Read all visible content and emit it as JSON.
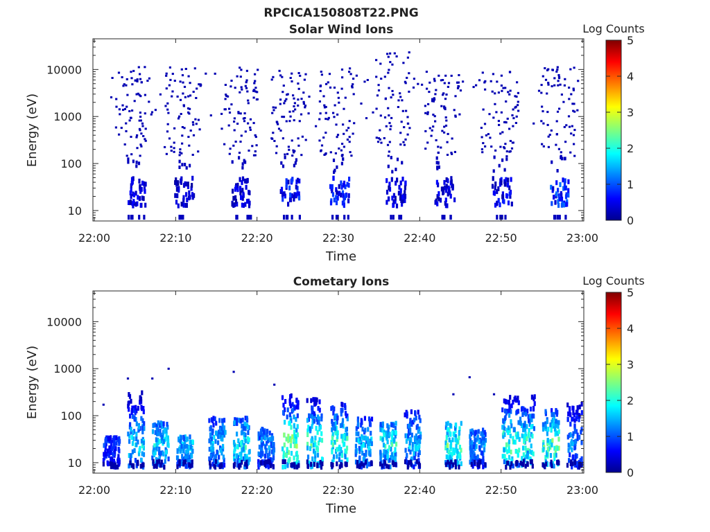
{
  "figure": {
    "title": "RPCICA150808T22.PNG"
  },
  "colorbar": {
    "label": "Log Counts",
    "ticks": [
      "5",
      "4",
      "3",
      "2",
      "1",
      "0"
    ],
    "range": [
      0,
      5
    ],
    "colormap": "jet"
  },
  "chart_data": [
    {
      "type": "heatmap",
      "title": "Solar Wind Ions",
      "xlabel": "Time",
      "ylabel": "Energy (eV)",
      "xticks": [
        "22:00",
        "22:10",
        "22:20",
        "22:30",
        "22:40",
        "22:50",
        "23:00"
      ],
      "yticks": [
        "10",
        "100",
        "1000",
        "10000"
      ],
      "xlim": [
        "22:00",
        "23:00"
      ],
      "ylim": [
        6,
        45000
      ],
      "yscale": "log",
      "bursts": [
        {
          "t": "22:05",
          "low_log_counts": 0.6,
          "high_energy_max": 12000
        },
        {
          "t": "22:11",
          "low_log_counts": 0.5,
          "high_energy_max": 12000
        },
        {
          "t": "22:18",
          "low_log_counts": 0.6,
          "high_energy_max": 12000
        },
        {
          "t": "22:24",
          "low_log_counts": 0.9,
          "high_energy_max": 10000
        },
        {
          "t": "22:30",
          "low_log_counts": 0.9,
          "high_energy_max": 12000
        },
        {
          "t": "22:37",
          "low_log_counts": 0.6,
          "high_energy_max": 25000
        },
        {
          "t": "22:43",
          "low_log_counts": 0.6,
          "high_energy_max": 10000
        },
        {
          "t": "22:50",
          "low_log_counts": 0.7,
          "high_energy_max": 10000
        },
        {
          "t": "22:57",
          "low_log_counts": 1.1,
          "high_energy_max": 12000
        }
      ]
    },
    {
      "type": "heatmap",
      "title": "Cometary Ions",
      "xlabel": "Time",
      "ylabel": "Energy (eV)",
      "xticks": [
        "22:00",
        "22:10",
        "22:20",
        "22:30",
        "22:40",
        "22:50",
        "23:00"
      ],
      "yticks": [
        "10",
        "100",
        "1000",
        "10000"
      ],
      "xlim": [
        "22:00",
        "23:00"
      ],
      "ylim": [
        6,
        45000
      ],
      "yscale": "log",
      "bursts": [
        {
          "t": "22:02",
          "peak_log_counts": 1.0,
          "top_energy": 40
        },
        {
          "t": "22:05",
          "peak_log_counts": 2.0,
          "top_energy": 350
        },
        {
          "t": "22:08",
          "peak_log_counts": 2.0,
          "top_energy": 80
        },
        {
          "t": "22:11",
          "peak_log_counts": 1.8,
          "top_energy": 40
        },
        {
          "t": "22:15",
          "peak_log_counts": 1.8,
          "top_energy": 100
        },
        {
          "t": "22:18",
          "peak_log_counts": 2.2,
          "top_energy": 100
        },
        {
          "t": "22:21",
          "peak_log_counts": 1.5,
          "top_energy": 60
        },
        {
          "t": "22:24",
          "peak_log_counts": 2.8,
          "top_energy": 300
        },
        {
          "t": "22:27",
          "peak_log_counts": 2.5,
          "top_energy": 250
        },
        {
          "t": "22:30",
          "peak_log_counts": 2.4,
          "top_energy": 200
        },
        {
          "t": "22:33",
          "peak_log_counts": 1.8,
          "top_energy": 100
        },
        {
          "t": "22:36",
          "peak_log_counts": 2.2,
          "top_energy": 80
        },
        {
          "t": "22:39",
          "peak_log_counts": 1.8,
          "top_energy": 150
        },
        {
          "t": "22:44",
          "peak_log_counts": 2.6,
          "top_energy": 80
        },
        {
          "t": "22:47",
          "peak_log_counts": 1.6,
          "top_energy": 60
        },
        {
          "t": "22:51",
          "peak_log_counts": 2.6,
          "top_energy": 300
        },
        {
          "t": "22:53",
          "peak_log_counts": 2.4,
          "top_energy": 300
        },
        {
          "t": "22:56",
          "peak_log_counts": 2.6,
          "top_energy": 150
        },
        {
          "t": "22:59",
          "peak_log_counts": 1.5,
          "top_energy": 200
        }
      ]
    }
  ]
}
